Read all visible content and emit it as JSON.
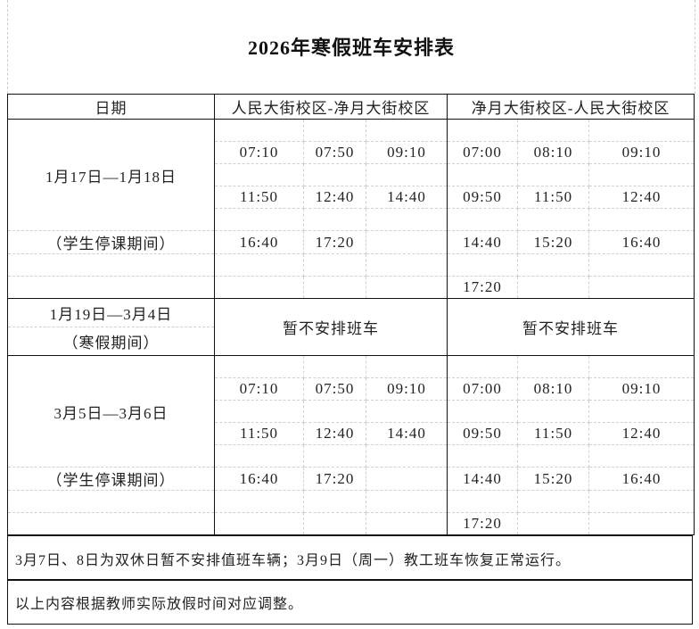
{
  "title": "2026年寒假班车安排表",
  "header": {
    "date": "日期",
    "route1": "人民大街校区-净月大街校区",
    "route2": "净月大街校区-人民大街校区"
  },
  "blocks": [
    {
      "date": "1月17日—1月18日",
      "note": "（学生停课期间）",
      "route1_times": [
        [
          "07:10",
          "07:50",
          "09:10"
        ],
        [
          "11:50",
          "12:40",
          "14:40"
        ],
        [
          "16:40",
          "17:20",
          ""
        ],
        [
          "",
          "",
          ""
        ]
      ],
      "route2_times": [
        [
          "07:00",
          "08:10",
          "09:10"
        ],
        [
          "09:50",
          "11:50",
          "12:40"
        ],
        [
          "14:40",
          "15:20",
          "16:40"
        ],
        [
          "17:20",
          "",
          ""
        ]
      ]
    },
    {
      "date": "1月19日—3月4日",
      "note": "（寒假期间）",
      "route1_text": "暂不安排班车",
      "route2_text": "暂不安排班车"
    },
    {
      "date": "3月5日—3月6日",
      "note": "（学生停课期间）",
      "route1_times": [
        [
          "07:10",
          "07:50",
          "09:10"
        ],
        [
          "11:50",
          "12:40",
          "14:40"
        ],
        [
          "16:40",
          "17:20",
          ""
        ],
        [
          "",
          "",
          ""
        ]
      ],
      "route2_times": [
        [
          "07:00",
          "08:10",
          "09:10"
        ],
        [
          "09:50",
          "11:50",
          "12:40"
        ],
        [
          "14:40",
          "15:20",
          "16:40"
        ],
        [
          "17:20",
          "",
          ""
        ]
      ]
    }
  ],
  "notes": [
    "3月7日、8日为双休日暂不安排值班车辆；3月9日（周一）教工班车恢复正常运行。",
    "以上内容根据教师实际放假时间对应调整。"
  ]
}
